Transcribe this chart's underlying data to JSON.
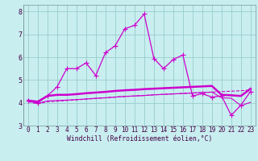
{
  "title": "",
  "xlabel": "Windchill (Refroidissement éolien,°C)",
  "ylabel": "",
  "background_color": "#c8eef0",
  "grid_color": "#99cccc",
  "line_color": "#cc00cc",
  "x_ticks": [
    0,
    1,
    2,
    3,
    4,
    5,
    6,
    7,
    8,
    9,
    10,
    11,
    12,
    13,
    14,
    15,
    16,
    17,
    18,
    19,
    20,
    21,
    22,
    23
  ],
  "xlim": [
    -0.5,
    23.5
  ],
  "ylim": [
    3.0,
    8.3
  ],
  "yticks": [
    3,
    4,
    5,
    6,
    7,
    8
  ],
  "series": [
    [
      4.1,
      4.0,
      4.3,
      4.7,
      5.5,
      5.5,
      5.75,
      5.2,
      6.2,
      6.5,
      7.25,
      7.4,
      7.9,
      5.95,
      5.5,
      5.9,
      6.1,
      4.3,
      4.4,
      4.25,
      4.3,
      3.45,
      3.9,
      4.5
    ],
    [
      4.1,
      4.05,
      4.3,
      4.35,
      4.35,
      4.38,
      4.42,
      4.45,
      4.48,
      4.52,
      4.55,
      4.57,
      4.6,
      4.62,
      4.64,
      4.66,
      4.68,
      4.7,
      4.72,
      4.74,
      4.35,
      4.33,
      4.3,
      4.62
    ],
    [
      4.08,
      3.98,
      4.08,
      4.1,
      4.12,
      4.14,
      4.17,
      4.2,
      4.22,
      4.25,
      4.28,
      4.3,
      4.32,
      4.35,
      4.37,
      4.39,
      4.41,
      4.43,
      4.45,
      4.47,
      4.22,
      4.2,
      3.88,
      4.02
    ],
    [
      4.05,
      3.95,
      4.05,
      4.07,
      4.1,
      4.13,
      4.16,
      4.19,
      4.22,
      4.25,
      4.28,
      4.3,
      4.32,
      4.35,
      4.37,
      4.39,
      4.41,
      4.43,
      4.45,
      4.47,
      4.49,
      4.51,
      4.53,
      4.56
    ]
  ],
  "markers": [
    "+",
    null,
    null,
    null
  ],
  "marker_sizes": [
    4,
    0,
    0,
    0
  ],
  "linewidths": [
    0.9,
    1.8,
    0.8,
    0.8
  ],
  "linestyles": [
    "-",
    "-",
    "-",
    "--"
  ],
  "tick_fontsize": 5.5,
  "xlabel_fontsize": 5.8
}
